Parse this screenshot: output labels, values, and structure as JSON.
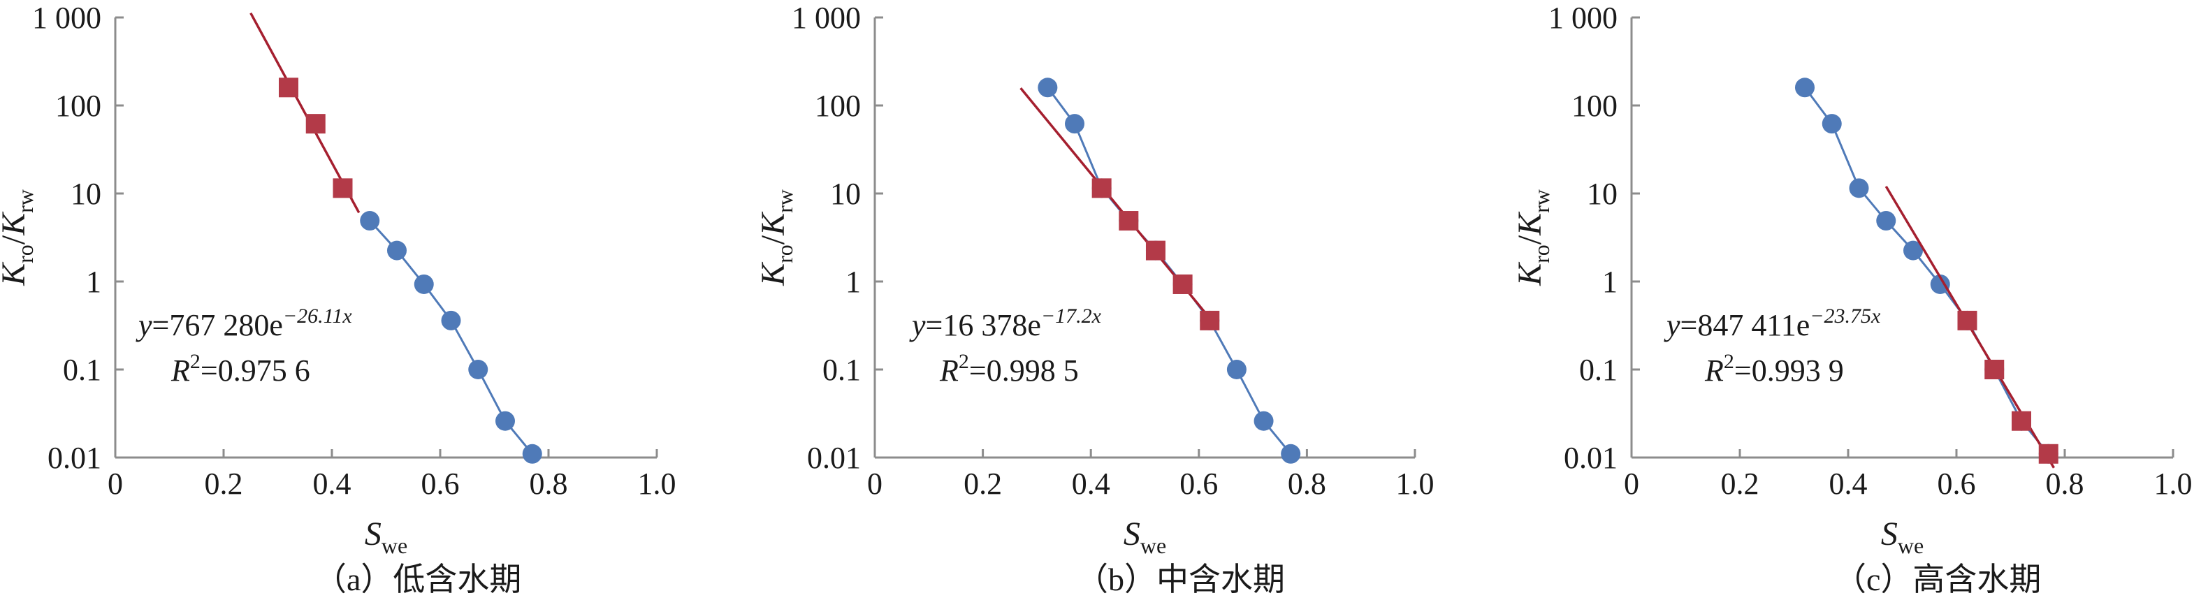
{
  "chart_data": [
    {
      "type": "scatter",
      "caption": "（a）低含水期",
      "xlabel": {
        "main": "S",
        "sub": "we"
      },
      "ylabel": {
        "n": "K",
        "n_sub": "ro",
        "d": "K",
        "d_sub": "rw"
      },
      "x_ticks": [
        "0",
        "0.2",
        "0.4",
        "0.6",
        "0.8",
        "1.0"
      ],
      "y_ticks": [
        "0.01",
        "0.1",
        "1",
        "10",
        "100",
        "1 000"
      ],
      "xlim": [
        0,
        1.0
      ],
      "ylim_log": [
        0.01,
        1000
      ],
      "y_scale": "log",
      "series": [
        {
          "x": [
            0.47,
            0.52,
            0.57,
            0.62,
            0.67,
            0.72,
            0.77
          ],
          "y": [
            4.9,
            2.25,
            0.93,
            0.36,
            0.1,
            0.026,
            0.011
          ],
          "marker": "circle",
          "color": "#4f7ab8"
        },
        {
          "x": [
            0.32,
            0.37,
            0.42
          ],
          "y": [
            160,
            62,
            11.5
          ],
          "marker": "square",
          "color": "#b33a48"
        }
      ],
      "fit": {
        "a": 767280,
        "b": -26.11,
        "x_range": [
          0.25,
          0.45
        ],
        "color": "#a51f2f"
      },
      "equation": {
        "prefix": "y",
        "body": "=767 280e",
        "exp": "−26.11x"
      },
      "r2": {
        "r": "R",
        "sup": "2",
        "value": "=0.975 6"
      }
    },
    {
      "type": "scatter",
      "caption": "（b）中含水期",
      "xlabel": {
        "main": "S",
        "sub": "we"
      },
      "ylabel": {
        "n": "K",
        "n_sub": "ro",
        "d": "K",
        "d_sub": "rw"
      },
      "x_ticks": [
        "0",
        "0.2",
        "0.4",
        "0.6",
        "0.8",
        "1.0"
      ],
      "y_ticks": [
        "0.01",
        "0.1",
        "1",
        "10",
        "100",
        "1 000"
      ],
      "xlim": [
        0,
        1.0
      ],
      "ylim_log": [
        0.01,
        1000
      ],
      "y_scale": "log",
      "series": [
        {
          "x": [
            0.32,
            0.37,
            0.42,
            0.47,
            0.52,
            0.57,
            0.62,
            0.67,
            0.72,
            0.77
          ],
          "y": [
            160,
            62,
            11.5,
            4.9,
            2.25,
            0.93,
            0.36,
            0.1,
            0.026,
            0.011
          ],
          "marker": "circle",
          "color": "#4f7ab8"
        },
        {
          "x": [
            0.42,
            0.47,
            0.52,
            0.57,
            0.62
          ],
          "y": [
            11.5,
            4.9,
            2.25,
            0.93,
            0.36
          ],
          "marker": "square",
          "color": "#b33a48"
        }
      ],
      "fit": {
        "a": 16378,
        "b": -17.2,
        "x_range": [
          0.27,
          0.63
        ],
        "color": "#a51f2f"
      },
      "equation": {
        "prefix": "y",
        "body": "=16 378e",
        "exp": "−17.2x"
      },
      "r2": {
        "r": "R",
        "sup": "2",
        "value": "=0.998 5"
      }
    },
    {
      "type": "scatter",
      "caption": "（c）高含水期",
      "xlabel": {
        "main": "S",
        "sub": "we"
      },
      "ylabel": {
        "n": "K",
        "n_sub": "ro",
        "d": "K",
        "d_sub": "rw"
      },
      "x_ticks": [
        "0",
        "0.2",
        "0.4",
        "0.6",
        "0.8",
        "1.0"
      ],
      "y_ticks": [
        "0.01",
        "0.1",
        "1",
        "10",
        "100",
        "1 000"
      ],
      "xlim": [
        0,
        1.0
      ],
      "ylim_log": [
        0.01,
        1000
      ],
      "y_scale": "log",
      "series": [
        {
          "x": [
            0.32,
            0.37,
            0.42,
            0.47,
            0.52,
            0.57,
            0.62,
            0.67,
            0.72,
            0.77
          ],
          "y": [
            160,
            62,
            11.5,
            4.9,
            2.25,
            0.93,
            0.36,
            0.1,
            0.026,
            0.011
          ],
          "marker": "circle",
          "color": "#4f7ab8"
        },
        {
          "x": [
            0.62,
            0.67,
            0.72,
            0.77
          ],
          "y": [
            0.36,
            0.1,
            0.026,
            0.011
          ],
          "marker": "square",
          "color": "#b33a48"
        }
      ],
      "fit": {
        "a": 847411,
        "b": -23.75,
        "x_range": [
          0.47,
          0.78
        ],
        "color": "#a51f2f"
      },
      "equation": {
        "prefix": "y",
        "body": "=847 411e",
        "exp": "−23.75x"
      },
      "r2": {
        "r": "R",
        "sup": "2",
        "value": "=0.993 9"
      }
    }
  ]
}
